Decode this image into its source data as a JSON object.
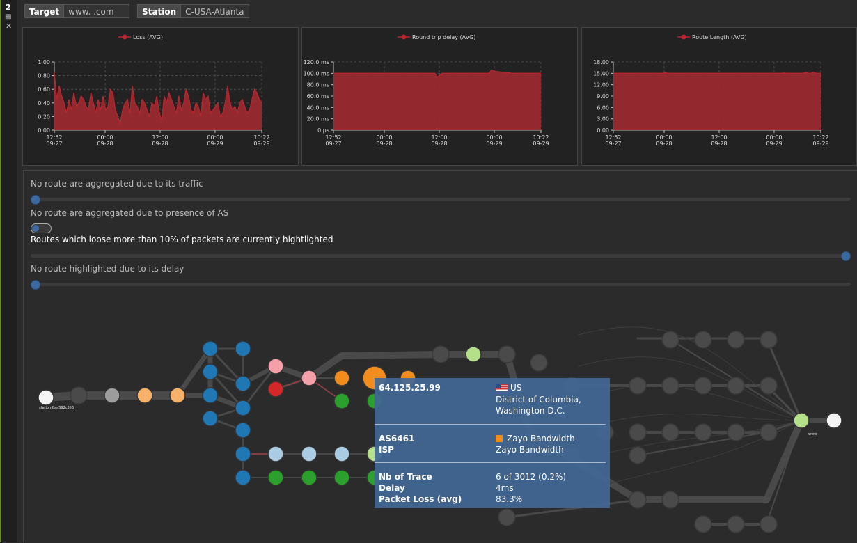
{
  "sidebar": {
    "number": "2",
    "menu_icon": "list-icon",
    "close_icon": "close-icon"
  },
  "header": {
    "target_label": "Target",
    "target_value": "www.            .com",
    "station_label": "Station",
    "station_value": "C-USA-Atlanta"
  },
  "colors": {
    "series": "#b8262e",
    "series_fill": "#9a2a30",
    "accent": "#3c6aa0"
  },
  "chart_data": [
    {
      "type": "area",
      "legend": "Loss (AVG)",
      "x_ticks": [
        [
          "12:52",
          "09-27"
        ],
        [
          "00:00",
          "09-28"
        ],
        [
          "12:00",
          "09-28"
        ],
        [
          "00:00",
          "09-29"
        ],
        [
          "10:22",
          "09-29"
        ]
      ],
      "y_ticks": [
        "0.00",
        "0.20",
        "0.40",
        "0.60",
        "0.80",
        "1.00"
      ],
      "ylim": [
        0,
        1
      ],
      "values": [
        0.85,
        0.45,
        0.65,
        0.5,
        0.4,
        0.25,
        0.45,
        0.3,
        0.55,
        0.35,
        0.4,
        0.5,
        0.45,
        0.35,
        0.3,
        0.55,
        0.4,
        0.25,
        0.45,
        0.3,
        0.5,
        0.3,
        0.35,
        0.6,
        0.55,
        0.3,
        0.2,
        0.1,
        0.3,
        0.4,
        0.45,
        0.25,
        0.65,
        0.4,
        0.35,
        0.25,
        0.45,
        0.4,
        0.3,
        0.2,
        0.4,
        0.35,
        0.5,
        0.25,
        0.15,
        0.5,
        0.4,
        0.55,
        0.45,
        0.35,
        0.25,
        0.5,
        0.3,
        0.4,
        0.6,
        0.5,
        0.3,
        0.25,
        0.4,
        0.35,
        0.2,
        0.55,
        0.45,
        0.5,
        0.25,
        0.3,
        0.35,
        0.4,
        0.2,
        0.25,
        0.4,
        0.65,
        0.4,
        0.3,
        0.35,
        0.25,
        0.4,
        0.45,
        0.35,
        0.25,
        0.3,
        0.45,
        0.6,
        0.55,
        0.45,
        0.4
      ]
    },
    {
      "type": "area",
      "legend": "Round trip delay (AVG)",
      "x_ticks": [
        [
          "12:52",
          "09-27"
        ],
        [
          "00:00",
          "09-28"
        ],
        [
          "12:00",
          "09-28"
        ],
        [
          "00:00",
          "09-29"
        ],
        [
          "10:22",
          "09-29"
        ]
      ],
      "y_ticks": [
        "0 µs",
        "20.0 ms",
        "40.0 ms",
        "60.0 ms",
        "80.0 ms",
        "100.0 ms",
        "120.0 ms"
      ],
      "ylim": [
        0,
        120
      ],
      "values": [
        100,
        100,
        100,
        100,
        100,
        100,
        100,
        100,
        100,
        100,
        100,
        100,
        100,
        100,
        100,
        100,
        100,
        100,
        100,
        100,
        100,
        100,
        100,
        100,
        100,
        100,
        100,
        100,
        100,
        100,
        100,
        100,
        100,
        100,
        100,
        100,
        100,
        100,
        100,
        100,
        100,
        100,
        93,
        97,
        100,
        100,
        100,
        100,
        100,
        100,
        100,
        100,
        100,
        100,
        100,
        100,
        100,
        100,
        100,
        100,
        100,
        100,
        100,
        100,
        106,
        104,
        103,
        103,
        102,
        102,
        101,
        101,
        100,
        100,
        100,
        100,
        100,
        100,
        100,
        100,
        100,
        100,
        100,
        100,
        100
      ]
    },
    {
      "type": "area",
      "legend": "Route Length (AVG)",
      "x_ticks": [
        [
          "12:52",
          "09-27"
        ],
        [
          "00:00",
          "09-28"
        ],
        [
          "12:00",
          "09-28"
        ],
        [
          "00:00",
          "09-29"
        ],
        [
          "10:22",
          "09-29"
        ]
      ],
      "y_ticks": [
        "0.00",
        "3.00",
        "6.00",
        "9.00",
        "12.00",
        "15.00",
        "18.00"
      ],
      "ylim": [
        0,
        18
      ],
      "values": [
        15.0,
        15.0,
        15.0,
        15.0,
        15.0,
        15.0,
        15.0,
        15.0,
        15.0,
        15.0,
        15.0,
        15.0,
        15.0,
        15.0,
        15.0,
        15.0,
        15.0,
        15.0,
        15.0,
        15.0,
        15.0,
        15.2,
        15.0,
        15.0,
        15.0,
        15.0,
        15.0,
        15.0,
        15.0,
        15.0,
        15.0,
        15.0,
        15.0,
        15.0,
        15.0,
        15.0,
        15.0,
        15.0,
        15.0,
        15.0,
        15.0,
        15.0,
        15.0,
        15.0,
        15.0,
        15.0,
        15.0,
        15.0,
        15.0,
        15.0,
        15.0,
        15.0,
        15.0,
        15.0,
        15.0,
        15.0,
        15.0,
        15.0,
        15.0,
        15.0,
        15.0,
        15.0,
        15.0,
        15.0,
        15.0,
        15.0,
        15.0,
        15.0,
        15.0,
        15.1,
        15.0,
        15.0,
        15.0,
        15.0,
        15.0,
        15.0,
        15.0,
        15.0,
        15.2,
        15.0,
        15.0,
        15.3,
        15.0,
        15.0,
        15.0
      ]
    }
  ],
  "controls": {
    "traffic_text": "No route are aggregated due to its traffic",
    "traffic_value": 0,
    "as_text": "No route are aggregated due to presence of AS",
    "as_toggle": false,
    "loss_text": "Routes which loose more than 10% of packets are currently hightlighted",
    "loss_value": 1,
    "delay_text": "No route highlighted due to its delay",
    "delay_value": 0
  },
  "graph": {
    "source_label": "station:8aa592c356",
    "dest_label": "www.             "
  },
  "tooltip": {
    "ip": "64.125.25.99",
    "country": "US",
    "location_line1": "District of Columbia,",
    "location_line2": "Washington D.C.",
    "as_label": "AS6461",
    "as_value": "Zayo Bandwidth",
    "isp_label": "ISP",
    "isp_value": "Zayo Bandwidth",
    "traces_label": "Nb of Trace",
    "traces_value": "6 of 3012 (0.2%)",
    "delay_label": "Delay",
    "delay_value": "4ms",
    "loss_label": "Packet Loss (avg)",
    "loss_value": "83.3%"
  }
}
